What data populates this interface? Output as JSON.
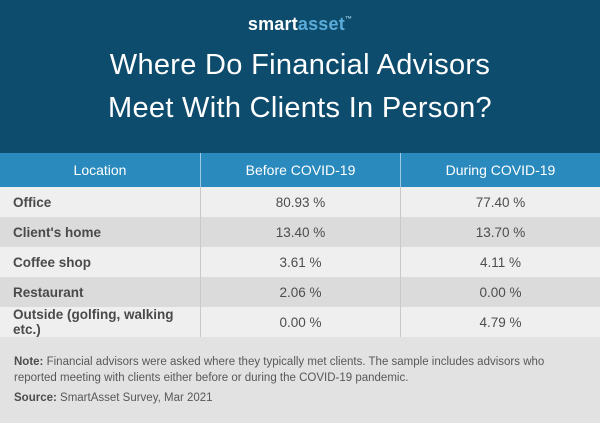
{
  "brand": {
    "smart": "smart",
    "asset": "asset",
    "trademark": "™"
  },
  "title": {
    "line1": "Where Do Financial Advisors",
    "line2": "Meet With Clients In Person?"
  },
  "table": {
    "columns": [
      "Location",
      "Before COVID-19",
      "During COVID-19"
    ],
    "rows": [
      {
        "location": "Office",
        "before": "80.93 %",
        "during": "77.40 %"
      },
      {
        "location": "Client's home",
        "before": "13.40 %",
        "during": "13.70 %"
      },
      {
        "location": "Coffee shop",
        "before": "3.61 %",
        "during": "4.11 %"
      },
      {
        "location": "Restaurant",
        "before": "2.06 %",
        "during": "0.00 %"
      },
      {
        "location": "Outside (golfing, walking etc.)",
        "before": "0.00 %",
        "during": "4.79 %"
      }
    ]
  },
  "footer": {
    "note_label": "Note:",
    "note_text": "Financial advisors were asked where they typically met clients. The sample includes advisors who reported meeting with clients either before or during the COVID-19 pandemic.",
    "source_label": "Source:",
    "source_text": "SmartAsset Survey, Mar 2021"
  },
  "colors": {
    "hero_background": "#0d4c6d",
    "table_header_background": "#2a8abd",
    "row_light": "#efefef",
    "row_dark": "#dbdbdb",
    "footer_background": "#e2e2e2",
    "logo_asset_blue": "#5aabd8",
    "body_text": "#4d4d4d"
  },
  "chart_data": {
    "type": "table",
    "title": "Where Do Financial Advisors Meet With Clients In Person?",
    "categories": [
      "Office",
      "Client's home",
      "Coffee shop",
      "Restaurant",
      "Outside (golfing, walking etc.)"
    ],
    "series": [
      {
        "name": "Before COVID-19",
        "values": [
          80.93,
          13.4,
          3.61,
          2.06,
          0.0
        ]
      },
      {
        "name": "During COVID-19",
        "values": [
          77.4,
          13.7,
          4.11,
          0.0,
          4.79
        ]
      }
    ],
    "unit": "%",
    "source": "SmartAsset Survey, Mar 2021"
  }
}
